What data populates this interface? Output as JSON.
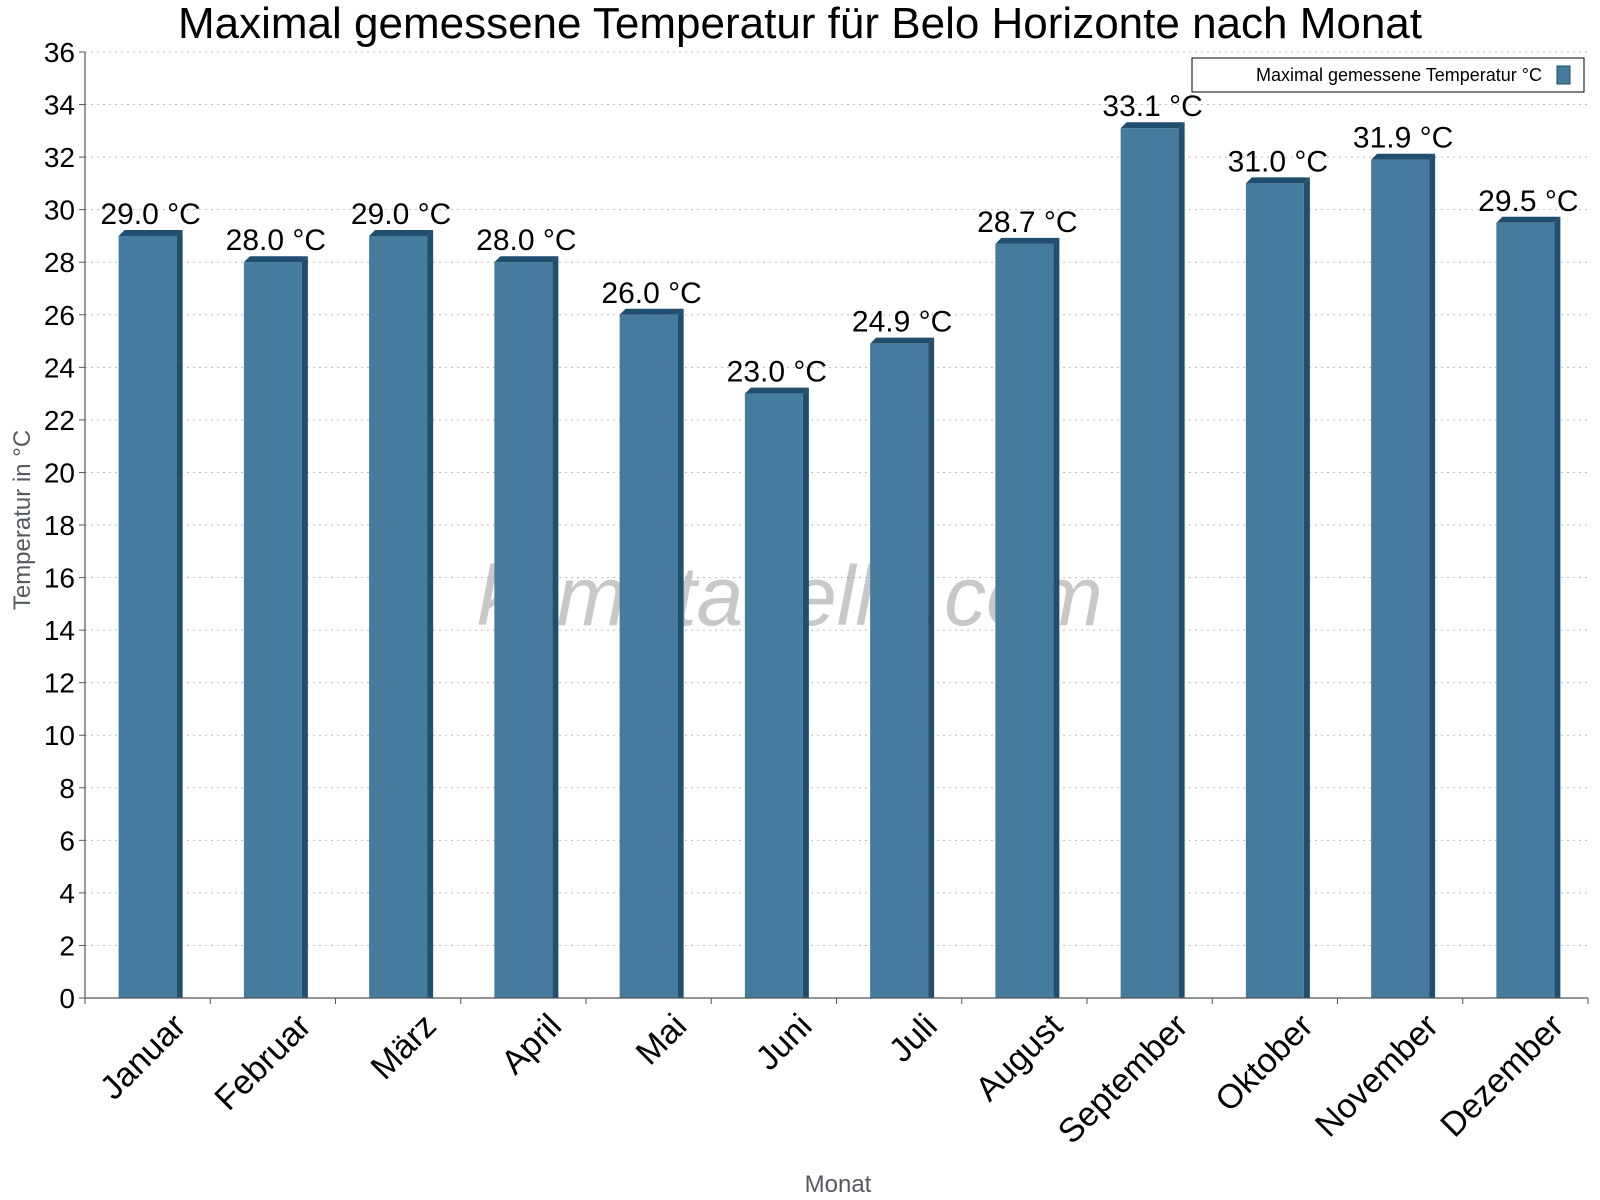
{
  "chart_data": {
    "type": "bar",
    "title": "Maximal gemessene Temperatur für Belo Horizonte nach Monat",
    "xlabel": "Monat",
    "ylabel": "Temperatur in °C",
    "ylim": [
      0,
      36
    ],
    "yticks": [
      0,
      2,
      4,
      6,
      8,
      10,
      12,
      14,
      16,
      18,
      20,
      22,
      24,
      26,
      28,
      30,
      32,
      34,
      36
    ],
    "grid": true,
    "legend_position": "top-right",
    "categories": [
      "Januar",
      "Februar",
      "März",
      "April",
      "Mai",
      "Juni",
      "Juli",
      "August",
      "September",
      "Oktober",
      "November",
      "Dezember"
    ],
    "series": [
      {
        "name": "Maximal gemessene Temperatur °C",
        "values": [
          29.0,
          28.0,
          29.0,
          28.0,
          26.0,
          23.0,
          24.9,
          28.7,
          33.1,
          31.0,
          31.9,
          29.5
        ],
        "labels": [
          "29.0 °C",
          "28.0 °C",
          "29.0 °C",
          "28.0 °C",
          "26.0 °C",
          "23.0 °C",
          "24.9 °C",
          "28.7 °C",
          "33.1 °C",
          "31.0 °C",
          "31.9 °C",
          "29.5 °C"
        ],
        "color": "#457b9d",
        "edge_color": "#1f4e6e"
      }
    ],
    "watermark": "klimatabelle.com"
  }
}
